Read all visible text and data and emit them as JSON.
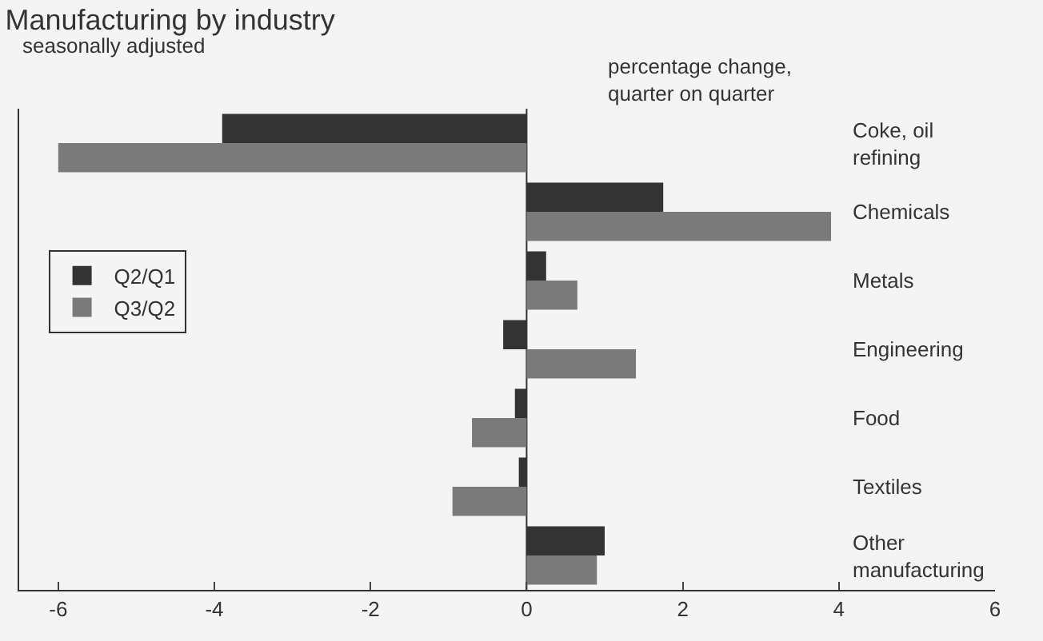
{
  "chart_data": {
    "type": "bar",
    "orientation": "horizontal",
    "title": "Manufacturing by industry",
    "subtitle": "seasonally adjusted",
    "annotations": [
      "percentage change,\nquarter on quarter"
    ],
    "categories": [
      "Coke, oil\nrefining",
      "Chemicals",
      "Metals",
      "Engineering",
      "Food",
      "Textiles",
      "Other\nmanufacturing"
    ],
    "series": [
      {
        "name": "Q2/Q1",
        "color": "#333333",
        "values": [
          -3.9,
          1.75,
          0.25,
          -0.3,
          -0.15,
          -0.1,
          1.0
        ]
      },
      {
        "name": "Q3/Q2",
        "color": "#7a7a7a",
        "values": [
          -6.0,
          3.9,
          0.65,
          1.4,
          -0.7,
          -0.95,
          0.9
        ]
      }
    ],
    "xlim": [
      -6.5,
      6
    ],
    "xticks": [
      -6,
      -4,
      -2,
      0,
      2,
      4,
      6
    ],
    "ref_lines": [
      {
        "axis": "x",
        "value": 0,
        "color": "#333333"
      }
    ],
    "legend": "left"
  }
}
